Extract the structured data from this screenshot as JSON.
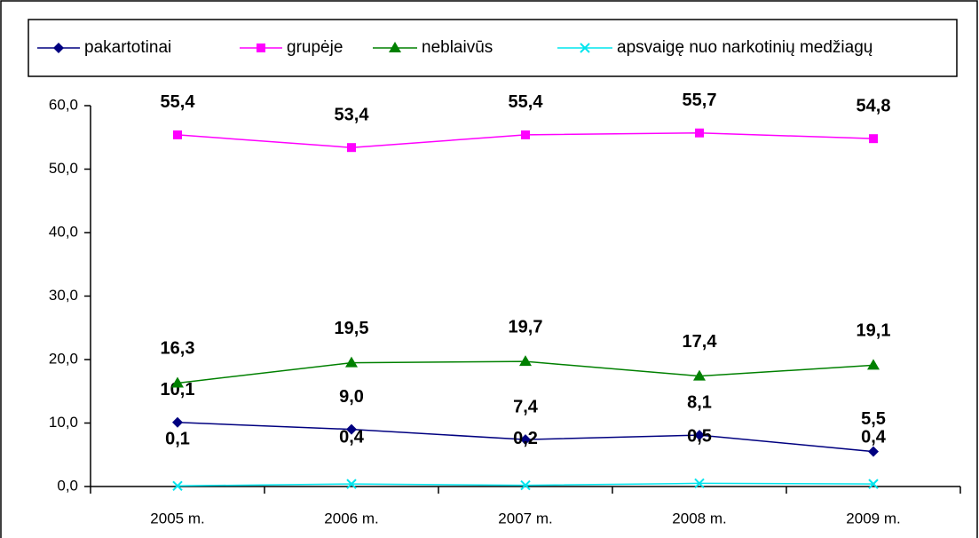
{
  "chart_data": {
    "type": "line",
    "categories": [
      "2005 m.",
      "2006 m.",
      "2007 m.",
      "2008 m.",
      "2009 m."
    ],
    "series": [
      {
        "name": "pakartotinai",
        "color": "#000080",
        "marker": "diamond",
        "values": [
          10.1,
          9.0,
          7.4,
          8.1,
          5.5
        ],
        "value_labels": [
          "10,1",
          "9,0",
          "7,4",
          "8,1",
          "5,5"
        ]
      },
      {
        "name": "grupėje",
        "color": "#ff00ff",
        "marker": "square",
        "values": [
          55.4,
          53.4,
          55.4,
          55.7,
          54.8
        ],
        "value_labels": [
          "55,4",
          "53,4",
          "55,4",
          "55,7",
          "54,8"
        ]
      },
      {
        "name": "neblaivūs",
        "color": "#008000",
        "marker": "triangle",
        "values": [
          16.3,
          19.5,
          19.7,
          17.4,
          19.1
        ],
        "value_labels": [
          "16,3",
          "19,5",
          "19,7",
          "17,4",
          "19,1"
        ]
      },
      {
        "name": "apsvaigę nuo narkotinių medžiagų",
        "color": "#00e5ee",
        "marker": "x",
        "values": [
          0.1,
          0.4,
          0.2,
          0.5,
          0.4
        ],
        "value_labels": [
          "0,1",
          "0,4",
          "0,2",
          "0,5",
          "0,4"
        ]
      }
    ],
    "ylim": [
      0,
      60
    ],
    "yticks": [
      {
        "value": 0,
        "label": "0,0"
      },
      {
        "value": 10,
        "label": "10,0"
      },
      {
        "value": 20,
        "label": "20,0"
      },
      {
        "value": 30,
        "label": "30,0"
      },
      {
        "value": 40,
        "label": "40,0"
      },
      {
        "value": 50,
        "label": "50,0"
      },
      {
        "value": 60,
        "label": "60,0"
      }
    ],
    "legend": "top"
  }
}
